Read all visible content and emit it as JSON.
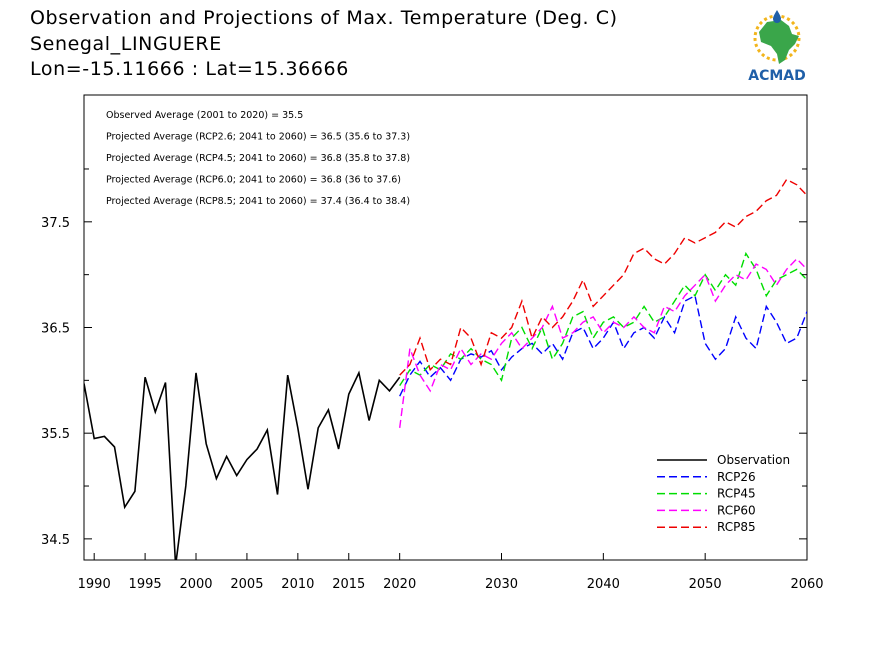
{
  "titles": [
    "Observation and Projections of Max. Temperature (Deg. C)",
    "Senegal_LINGUERE",
    "Lon=-15.11666 : Lat=15.36666"
  ],
  "logo": {
    "text": "ACMAD",
    "text_color": "#1f5fa8",
    "africa_color": "#3aa64a",
    "ray_color": "#f2b51c"
  },
  "chart_data": {
    "type": "line",
    "xlim": [
      1989,
      2060
    ],
    "ylim": [
      34.3,
      38.7
    ],
    "x_ticks": [
      1990,
      1995,
      2000,
      2005,
      2010,
      2015,
      2020,
      2030,
      2040,
      2050,
      2060
    ],
    "y_ticks": [
      34.5,
      35.5,
      36.5,
      37.5
    ],
    "y_minor": [
      35.0,
      36.0,
      37.0,
      38.0
    ],
    "grid": false,
    "annotations": [
      "Observed Average (2001 to 2020) = 35.5",
      "Projected Average (RCP2.6; 2041 to 2060) = 36.5 (35.6 to 37.3)",
      "Projected Average (RCP4.5; 2041 to 2060) = 36.8 (35.8 to 37.8)",
      "Projected Average (RCP6.0; 2041 to 2060) = 36.8 (36 to 37.6)",
      "Projected Average (RCP8.5; 2041 to 2060) = 37.4 (36.4 to 38.4)"
    ],
    "legend_position": "bottom-right",
    "series": [
      {
        "name": "Observation",
        "color": "#000000",
        "dashed": false,
        "x": [
          1989,
          1990,
          1991,
          1992,
          1993,
          1994,
          1995,
          1996,
          1997,
          1998,
          1999,
          2000,
          2001,
          2002,
          2003,
          2004,
          2005,
          2006,
          2007,
          2008,
          2009,
          2010,
          2011,
          2012,
          2013,
          2014,
          2015,
          2016,
          2017,
          2018,
          2019,
          2020
        ],
        "y": [
          35.97,
          35.45,
          35.47,
          35.37,
          34.8,
          34.95,
          36.03,
          35.7,
          35.98,
          34.25,
          35.0,
          36.07,
          35.4,
          35.07,
          35.28,
          35.1,
          35.25,
          35.35,
          35.53,
          34.92,
          36.05,
          35.55,
          34.97,
          35.55,
          35.72,
          35.35,
          35.87,
          36.07,
          35.62,
          36.0,
          35.9,
          36.03
        ]
      },
      {
        "name": "RCP26",
        "color": "#0000ff",
        "dashed": true,
        "x": [
          2020,
          2021,
          2022,
          2023,
          2024,
          2025,
          2026,
          2027,
          2028,
          2029,
          2030,
          2031,
          2032,
          2033,
          2034,
          2035,
          2036,
          2037,
          2038,
          2039,
          2040,
          2041,
          2042,
          2043,
          2044,
          2045,
          2046,
          2047,
          2048,
          2049,
          2050,
          2051,
          2052,
          2053,
          2054,
          2055,
          2056,
          2057,
          2058,
          2059,
          2060
        ],
        "y": [
          35.85,
          36.05,
          36.18,
          36.03,
          36.12,
          36.0,
          36.2,
          36.25,
          36.22,
          36.28,
          36.1,
          36.22,
          36.3,
          36.35,
          36.25,
          36.35,
          36.2,
          36.45,
          36.5,
          36.3,
          36.4,
          36.55,
          36.3,
          36.45,
          36.5,
          36.4,
          36.6,
          36.45,
          36.75,
          36.8,
          36.35,
          36.2,
          36.3,
          36.6,
          36.4,
          36.3,
          36.7,
          36.55,
          36.35,
          36.4,
          36.65
        ]
      },
      {
        "name": "RCP45",
        "color": "#00dd00",
        "dashed": true,
        "x": [
          2020,
          2021,
          2022,
          2023,
          2024,
          2025,
          2026,
          2027,
          2028,
          2029,
          2030,
          2031,
          2032,
          2033,
          2034,
          2035,
          2036,
          2037,
          2038,
          2039,
          2040,
          2041,
          2042,
          2043,
          2044,
          2045,
          2046,
          2047,
          2048,
          2049,
          2050,
          2051,
          2052,
          2053,
          2054,
          2055,
          2056,
          2057,
          2058,
          2059,
          2060
        ],
        "y": [
          35.95,
          36.1,
          36.05,
          36.15,
          36.1,
          36.25,
          36.2,
          36.3,
          36.2,
          36.15,
          36.0,
          36.4,
          36.5,
          36.3,
          36.5,
          36.2,
          36.35,
          36.6,
          36.65,
          36.4,
          36.55,
          36.6,
          36.5,
          36.55,
          36.7,
          36.55,
          36.6,
          36.75,
          36.9,
          36.8,
          37.0,
          36.85,
          37.0,
          36.9,
          37.2,
          37.05,
          36.8,
          36.95,
          37.0,
          37.05,
          36.95
        ]
      },
      {
        "name": "RCP60",
        "color": "#ff00ff",
        "dashed": true,
        "x": [
          2020,
          2021,
          2022,
          2023,
          2024,
          2025,
          2026,
          2027,
          2028,
          2029,
          2030,
          2031,
          2032,
          2033,
          2034,
          2035,
          2036,
          2037,
          2038,
          2039,
          2040,
          2041,
          2042,
          2043,
          2044,
          2045,
          2046,
          2047,
          2048,
          2049,
          2050,
          2051,
          2052,
          2053,
          2054,
          2055,
          2056,
          2057,
          2058,
          2059,
          2060
        ],
        "y": [
          35.55,
          36.3,
          36.05,
          35.9,
          36.15,
          36.1,
          36.3,
          36.15,
          36.25,
          36.2,
          36.35,
          36.45,
          36.3,
          36.4,
          36.5,
          36.7,
          36.4,
          36.45,
          36.55,
          36.6,
          36.45,
          36.55,
          36.5,
          36.6,
          36.5,
          36.45,
          36.7,
          36.65,
          36.8,
          36.9,
          37.0,
          36.75,
          36.9,
          37.0,
          36.95,
          37.1,
          37.05,
          36.9,
          37.05,
          37.15,
          37.05
        ]
      },
      {
        "name": "RCP85",
        "color": "#ee0000",
        "dashed": true,
        "x": [
          2020,
          2021,
          2022,
          2023,
          2024,
          2025,
          2026,
          2027,
          2028,
          2029,
          2030,
          2031,
          2032,
          2033,
          2034,
          2035,
          2036,
          2037,
          2038,
          2039,
          2040,
          2041,
          2042,
          2043,
          2044,
          2045,
          2046,
          2047,
          2048,
          2049,
          2050,
          2051,
          2052,
          2053,
          2054,
          2055,
          2056,
          2057,
          2058,
          2059,
          2060
        ],
        "y": [
          36.05,
          36.15,
          36.4,
          36.1,
          36.2,
          36.15,
          36.5,
          36.4,
          36.15,
          36.45,
          36.4,
          36.5,
          36.75,
          36.4,
          36.6,
          36.5,
          36.6,
          36.75,
          36.95,
          36.7,
          36.8,
          36.9,
          37.0,
          37.2,
          37.25,
          37.15,
          37.1,
          37.2,
          37.35,
          37.3,
          37.35,
          37.4,
          37.5,
          37.45,
          37.55,
          37.6,
          37.7,
          37.75,
          37.9,
          37.85,
          37.75
        ]
      }
    ]
  }
}
